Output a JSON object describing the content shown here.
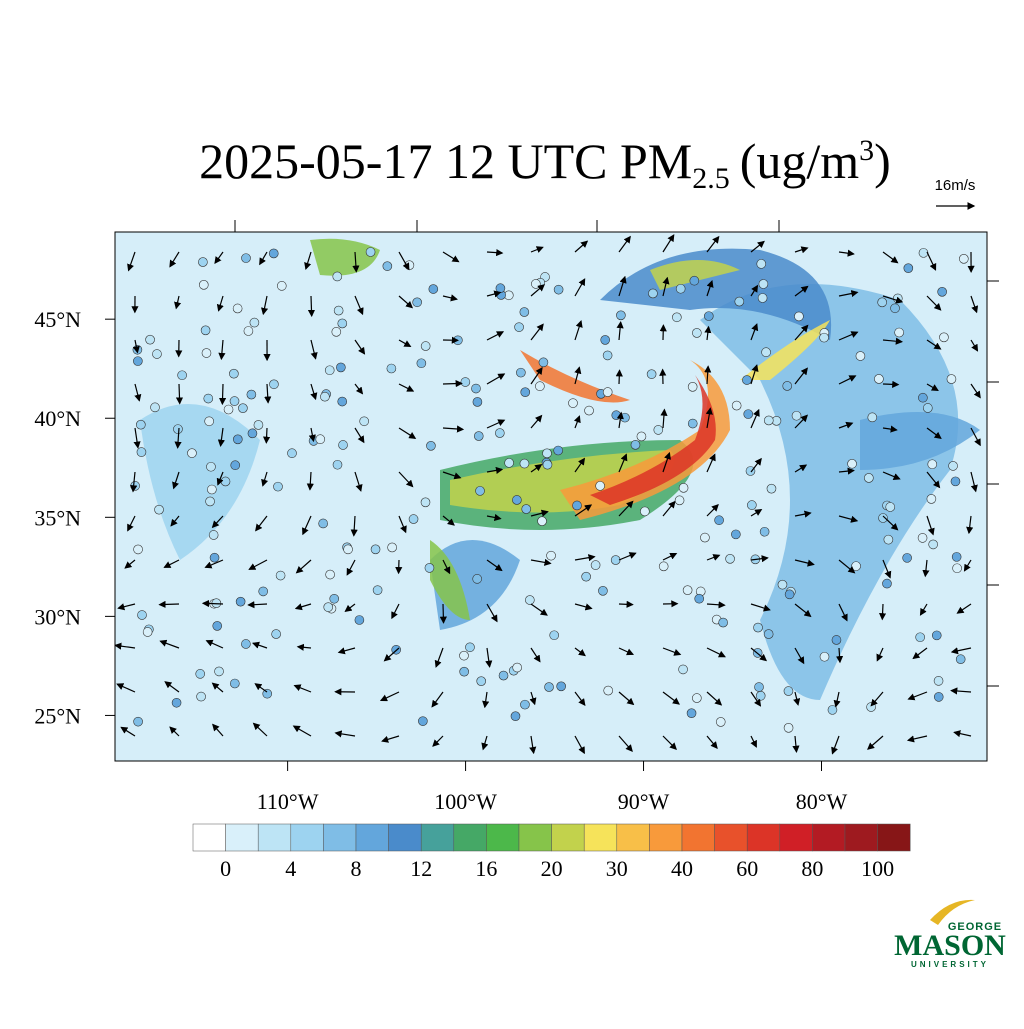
{
  "header": {
    "title": "2025-05-17 12 UTC PM",
    "title_subscript": "2.5",
    "title_units": "(ug/m",
    "title_superscript": "3",
    "title_close": ")"
  },
  "reference_vector": {
    "label": "16m/s"
  },
  "map": {
    "xlim": [
      -119.7,
      -70.7
    ],
    "ylim": [
      22.7,
      49.4
    ],
    "xticks": [
      {
        "value": -110,
        "label": "110°W"
      },
      {
        "value": -100,
        "label": "100°W"
      },
      {
        "value": -90,
        "label": "90°W"
      },
      {
        "value": -80,
        "label": "80°W"
      }
    ],
    "yticks": [
      {
        "value": 45,
        "label": "45°N"
      },
      {
        "value": 40,
        "label": "40°N"
      },
      {
        "value": 35,
        "label": "35°N"
      },
      {
        "value": 30,
        "label": "30°N"
      },
      {
        "value": 25,
        "label": "25°N"
      }
    ]
  },
  "colorbar": {
    "levels": [
      0,
      2,
      4,
      6,
      8,
      10,
      12,
      14,
      16,
      18,
      20,
      25,
      30,
      35,
      40,
      50,
      60,
      70,
      80,
      90,
      100
    ],
    "colors": [
      "#ffffff",
      "#d9f0fa",
      "#bde4f5",
      "#9dd3f0",
      "#7fbde6",
      "#63a6dc",
      "#4a8bcb",
      "#46a19b",
      "#45a866",
      "#4cb84a",
      "#86c44a",
      "#c2d24c",
      "#f6e35a",
      "#f8bf48",
      "#f89a3b",
      "#f27430",
      "#e8512b",
      "#dc3427",
      "#d01f26",
      "#b31b23",
      "#9e1a1f",
      "#871617"
    ],
    "ticks": [
      0,
      4,
      8,
      12,
      16,
      20,
      30,
      40,
      60,
      80,
      100
    ]
  },
  "logo": {
    "top": "GEORGE",
    "main": "MASON",
    "bottom": "UNIVERSITY"
  }
}
